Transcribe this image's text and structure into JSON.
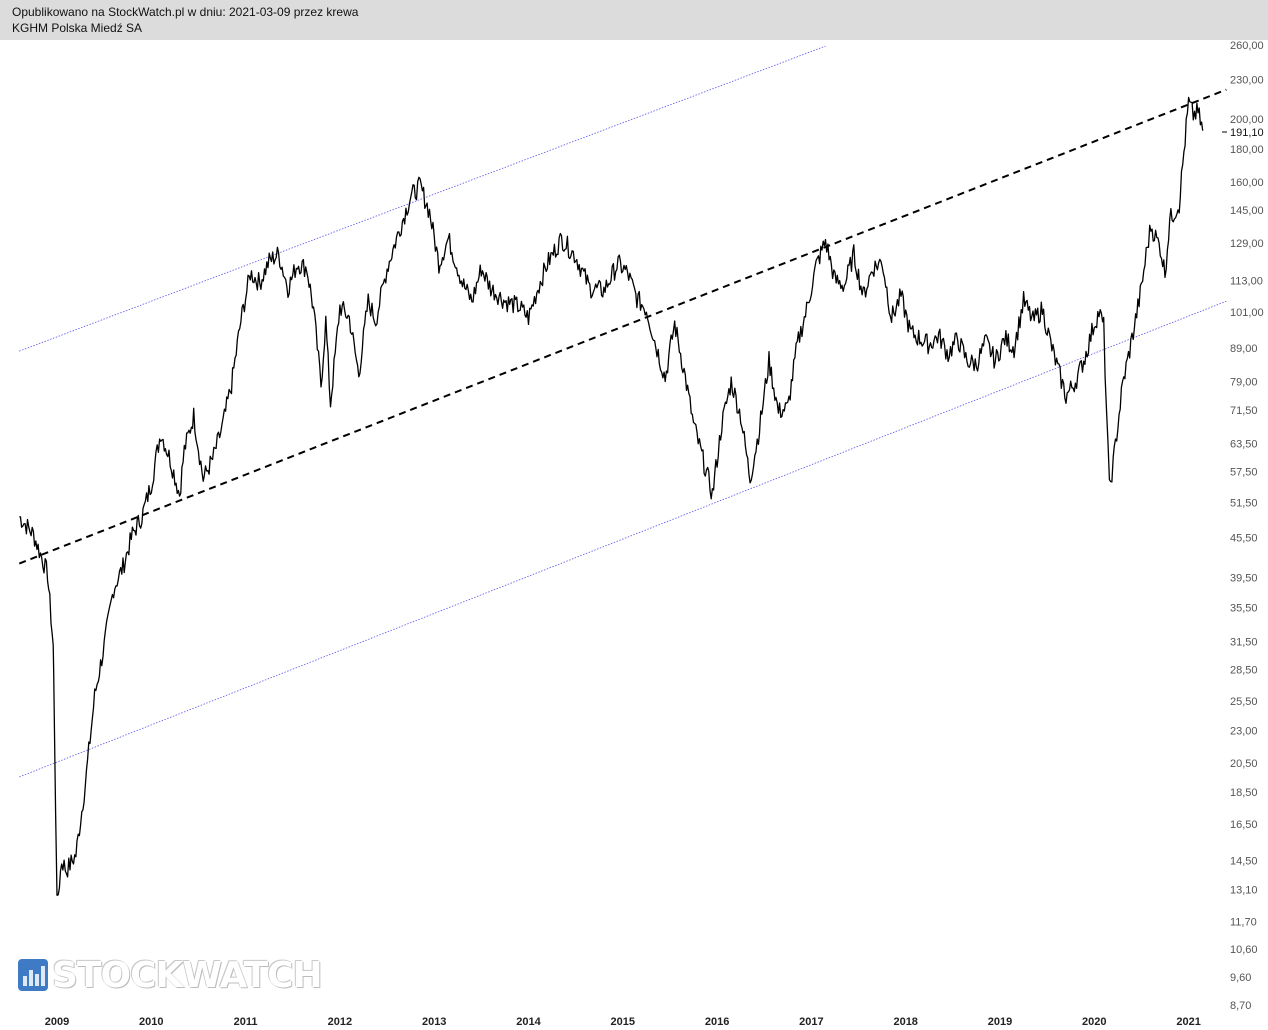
{
  "header": {
    "line1": "Opublikowano na StockWatch.pl w dniu: 2021-03-09 przez krewa",
    "line2": "KGHM Polska Miedź SA"
  },
  "watermark": {
    "text": "STOCKWATCH",
    "icon": "bar-chart-icon",
    "color": "#3f7bc4"
  },
  "colors": {
    "price": "#000000",
    "dashed_trend": "#000000",
    "channel": "#5555ee",
    "header_bg": "#dcdcdc"
  },
  "chart_data": {
    "type": "line",
    "title": "KGHM Polska Miedź SA",
    "scale": "log",
    "ylim": [
      8.7,
      260
    ],
    "y_ticks": [
      "260,00",
      "230,00",
      "200,00",
      "180,00",
      "160,00",
      "145,00",
      "129,00",
      "113,00",
      "101,00",
      "89,00",
      "79,00",
      "71,50",
      "63,50",
      "57,50",
      "51,50",
      "45,50",
      "39,50",
      "35,50",
      "31,50",
      "28,50",
      "25,50",
      "23,00",
      "20,50",
      "18,50",
      "16,50",
      "14,50",
      "13,10",
      "11,70",
      "10,60",
      "9,60",
      "8,70"
    ],
    "last_value_label": "191,10",
    "x_ticks": [
      "2009",
      "2010",
      "2011",
      "2012",
      "2013",
      "2014",
      "2015",
      "2016",
      "2017",
      "2018",
      "2019",
      "2020",
      "2021"
    ],
    "series": [
      {
        "type": "price",
        "x": [
          2008.6,
          2008.75,
          2008.9,
          2008.96,
          2008.97,
          2009.0,
          2009.05,
          2009.1,
          2009.2,
          2009.3,
          2009.4,
          2009.5,
          2009.6,
          2009.7,
          2009.8,
          2009.9,
          2010.0,
          2010.1,
          2010.2,
          2010.3,
          2010.35,
          2010.45,
          2010.55,
          2010.65,
          2010.75,
          2010.85,
          2010.95,
          2011.05,
          2011.15,
          2011.25,
          2011.35,
          2011.45,
          2011.55,
          2011.65,
          2011.72,
          2011.8,
          2011.85,
          2011.9,
          2012.0,
          2012.1,
          2012.2,
          2012.3,
          2012.38,
          2012.5,
          2012.6,
          2012.75,
          2012.85,
          2012.95,
          2013.05,
          2013.15,
          2013.3,
          2013.4,
          2013.5,
          2013.6,
          2013.75,
          2013.9,
          2014.0,
          2014.1,
          2014.2,
          2014.35,
          2014.5,
          2014.65,
          2014.8,
          2014.95,
          2015.05,
          2015.15,
          2015.25,
          2015.35,
          2015.45,
          2015.55,
          2015.65,
          2015.75,
          2015.85,
          2015.95,
          2016.05,
          2016.15,
          2016.25,
          2016.35,
          2016.45,
          2016.55,
          2016.65,
          2016.75,
          2016.85,
          2016.95,
          2017.05,
          2017.15,
          2017.25,
          2017.35,
          2017.45,
          2017.55,
          2017.65,
          2017.75,
          2017.85,
          2017.95,
          2018.05,
          2018.15,
          2018.25,
          2018.35,
          2018.45,
          2018.55,
          2018.65,
          2018.75,
          2018.85,
          2018.95,
          2019.05,
          2019.15,
          2019.25,
          2019.35,
          2019.45,
          2019.55,
          2019.6,
          2019.7,
          2019.8,
          2019.9,
          2020.0,
          2020.05,
          2020.1,
          2020.13,
          2020.16,
          2020.2,
          2020.25,
          2020.3,
          2020.4,
          2020.5,
          2020.55,
          2020.6,
          2020.7,
          2020.75,
          2020.8,
          2020.9,
          2020.95,
          2021.0,
          2021.05,
          2021.1,
          2021.15
        ],
        "y": [
          49,
          46,
          40,
          31,
          25,
          12.4,
          14.5,
          14.0,
          14.8,
          19,
          26,
          31,
          38,
          41,
          46,
          49,
          55,
          66,
          60,
          53,
          62,
          70,
          56,
          60,
          67,
          78,
          98,
          116,
          112,
          121,
          124,
          110,
          120,
          118,
          102,
          78,
          98,
          73,
          103,
          99,
          81,
          105,
          98,
          118,
          131,
          152,
          158,
          144,
          120,
          131,
          112,
          105,
          118,
          110,
          105,
          103,
          99,
          110,
          120,
          131,
          123,
          110,
          109,
          120,
          116,
          106,
          102,
          90,
          80,
          97,
          82,
          68,
          60,
          53,
          68,
          79,
          70,
          56,
          67,
          85,
          71,
          72,
          90,
          102,
          119,
          130,
          113,
          111,
          124,
          107,
          118,
          121,
          99,
          107,
          94,
          92,
          90,
          93,
          87,
          92,
          85,
          84,
          91,
          85,
          92,
          89,
          105,
          98,
          102,
          89,
          84,
          75,
          79,
          86,
          97,
          101,
          96,
          71,
          54,
          59,
          68,
          78,
          92,
          110,
          124,
          137,
          127,
          116,
          140,
          148,
          178,
          212,
          203,
          205,
          192
        ]
      }
    ],
    "trendlines": [
      {
        "name": "dashed",
        "x": [
          2008.6,
          2021.4
        ],
        "y": [
          41.5,
          222
        ]
      },
      {
        "name": "channel-upper",
        "x": [
          2008.6,
          2017.15
        ],
        "y": [
          88,
          259
        ]
      },
      {
        "name": "channel-lower",
        "x": [
          2008.6,
          2021.4
        ],
        "y": [
          19.5,
          105
        ]
      }
    ]
  }
}
